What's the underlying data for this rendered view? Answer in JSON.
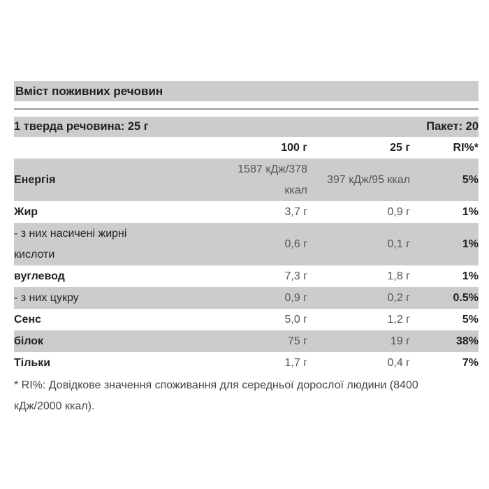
{
  "section_title": "Вміст поживних речовин",
  "serving": {
    "left": "1 тверда речовина: 25 г",
    "right": "Пакет: 20"
  },
  "columns": {
    "per100": "100 г",
    "perServing": "25 г",
    "ri": "RI%*"
  },
  "rows": [
    {
      "label": "Енергія",
      "label_line2": "",
      "per100": "1587 кДж/378",
      "per100_line2": "ккал",
      "perServing": "397 кДж/95 ккал",
      "ri": "5%"
    },
    {
      "label": "Жир",
      "per100": "3,7 г",
      "perServing": "0,9 г",
      "ri": "1%"
    },
    {
      "label": "- з них насичені жирні",
      "label_line2": "кислоти",
      "per100": "0,6 г",
      "perServing": "0,1 г",
      "ri": "1%"
    },
    {
      "label": "вуглевод",
      "per100": "7,3 г",
      "perServing": "1,8 г",
      "ri": "1%"
    },
    {
      "label": "- з них цукру",
      "per100": "0,9 г",
      "perServing": "0,2 г",
      "ri": "0.5%"
    },
    {
      "label": "Сенс",
      "per100": "5,0 г",
      "perServing": "1,2 г",
      "ri": "5%"
    },
    {
      "label": "білок",
      "per100": "75 г",
      "perServing": "19 г",
      "ri": "38%"
    },
    {
      "label": "Тільки",
      "per100": "1,7 г",
      "perServing": "0,4 г",
      "ri": "7%"
    }
  ],
  "footnote": "* RI%: Довідкове значення споживання для середньої дорослої людини (8400 кДж/2000 ккал).",
  "colors": {
    "band": "#cccccc",
    "text": "#222222",
    "value_text": "#555555",
    "rule": "#9a9a9a"
  }
}
